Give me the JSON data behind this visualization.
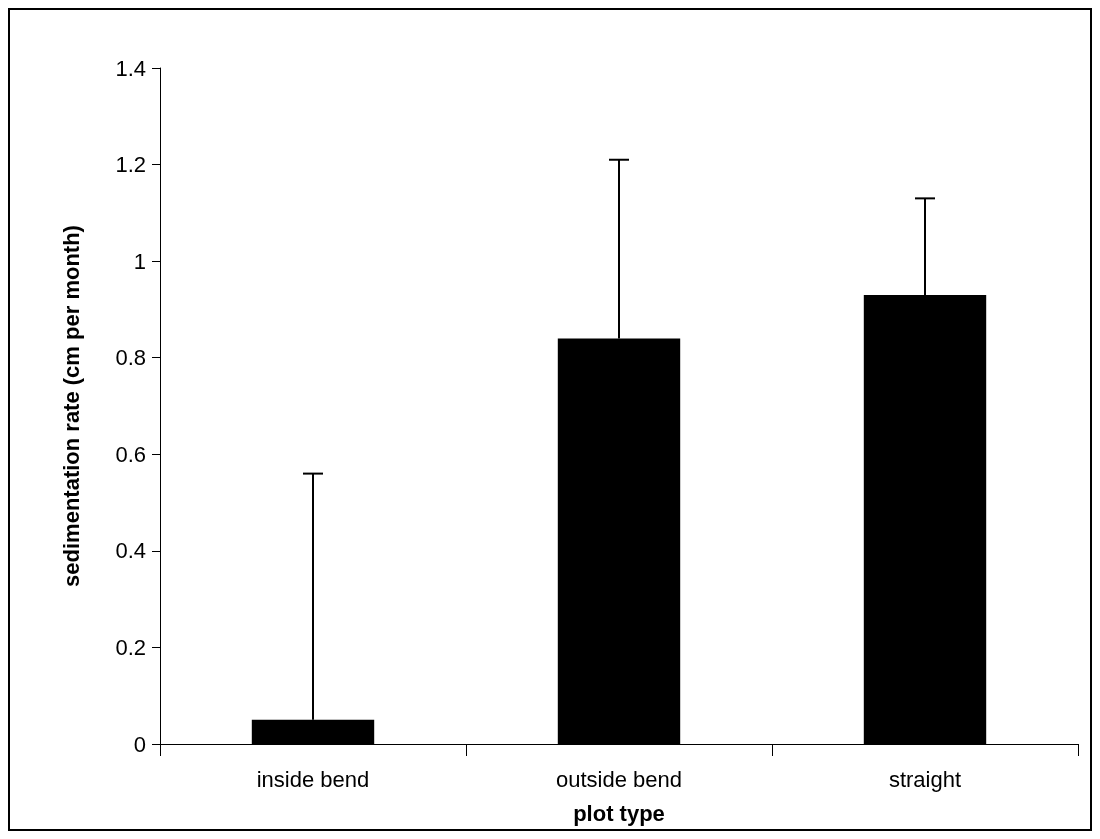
{
  "chart_data": {
    "type": "bar",
    "xlabel": "plot type",
    "ylabel": "sedimentation rate (cm per month)",
    "categories": [
      "inside bend",
      "outside bend",
      "straight"
    ],
    "values": [
      0.05,
      0.84,
      0.93
    ],
    "errors": [
      [
        0.05,
        0.56
      ],
      [
        0.84,
        1.21
      ],
      [
        0.93,
        1.13
      ]
    ],
    "color": "#000000",
    "ylim": [
      0,
      1.4
    ],
    "yticks": [
      0,
      0.2,
      0.4,
      0.6,
      0.8,
      1,
      1.2,
      1.4
    ],
    "grid": false
  }
}
